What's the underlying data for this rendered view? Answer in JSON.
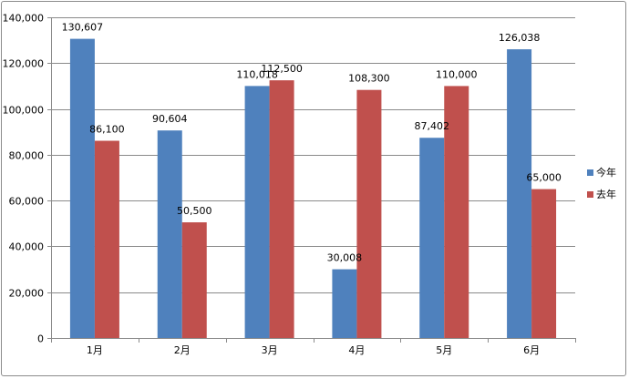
{
  "chart_data": {
    "type": "bar",
    "categories": [
      "1月",
      "2月",
      "3月",
      "4月",
      "5月",
      "6月"
    ],
    "series": [
      {
        "name": "今年",
        "values": [
          130607,
          90604,
          110018,
          30008,
          87402,
          126038
        ],
        "labels": [
          "130,607",
          "90,604",
          "110,018",
          "30,008",
          "87,402",
          "126,038"
        ],
        "color": "#4f81bd"
      },
      {
        "name": "去年",
        "values": [
          86100,
          50500,
          112500,
          108300,
          110000,
          65000
        ],
        "labels": [
          "86,100",
          "50,500",
          "112,500",
          "108,300",
          "110,000",
          "65,000"
        ],
        "color": "#c0504d"
      }
    ],
    "ylim": [
      0,
      140000
    ],
    "yticks": [
      0,
      20000,
      40000,
      60000,
      80000,
      100000,
      120000,
      140000
    ],
    "ytick_labels": [
      "0",
      "20,000",
      "40,000",
      "60,000",
      "80,000",
      "100,000",
      "120,000",
      "140,000"
    ],
    "grid": true,
    "legend_position": "right",
    "title": "",
    "xlabel": "",
    "ylabel": ""
  }
}
